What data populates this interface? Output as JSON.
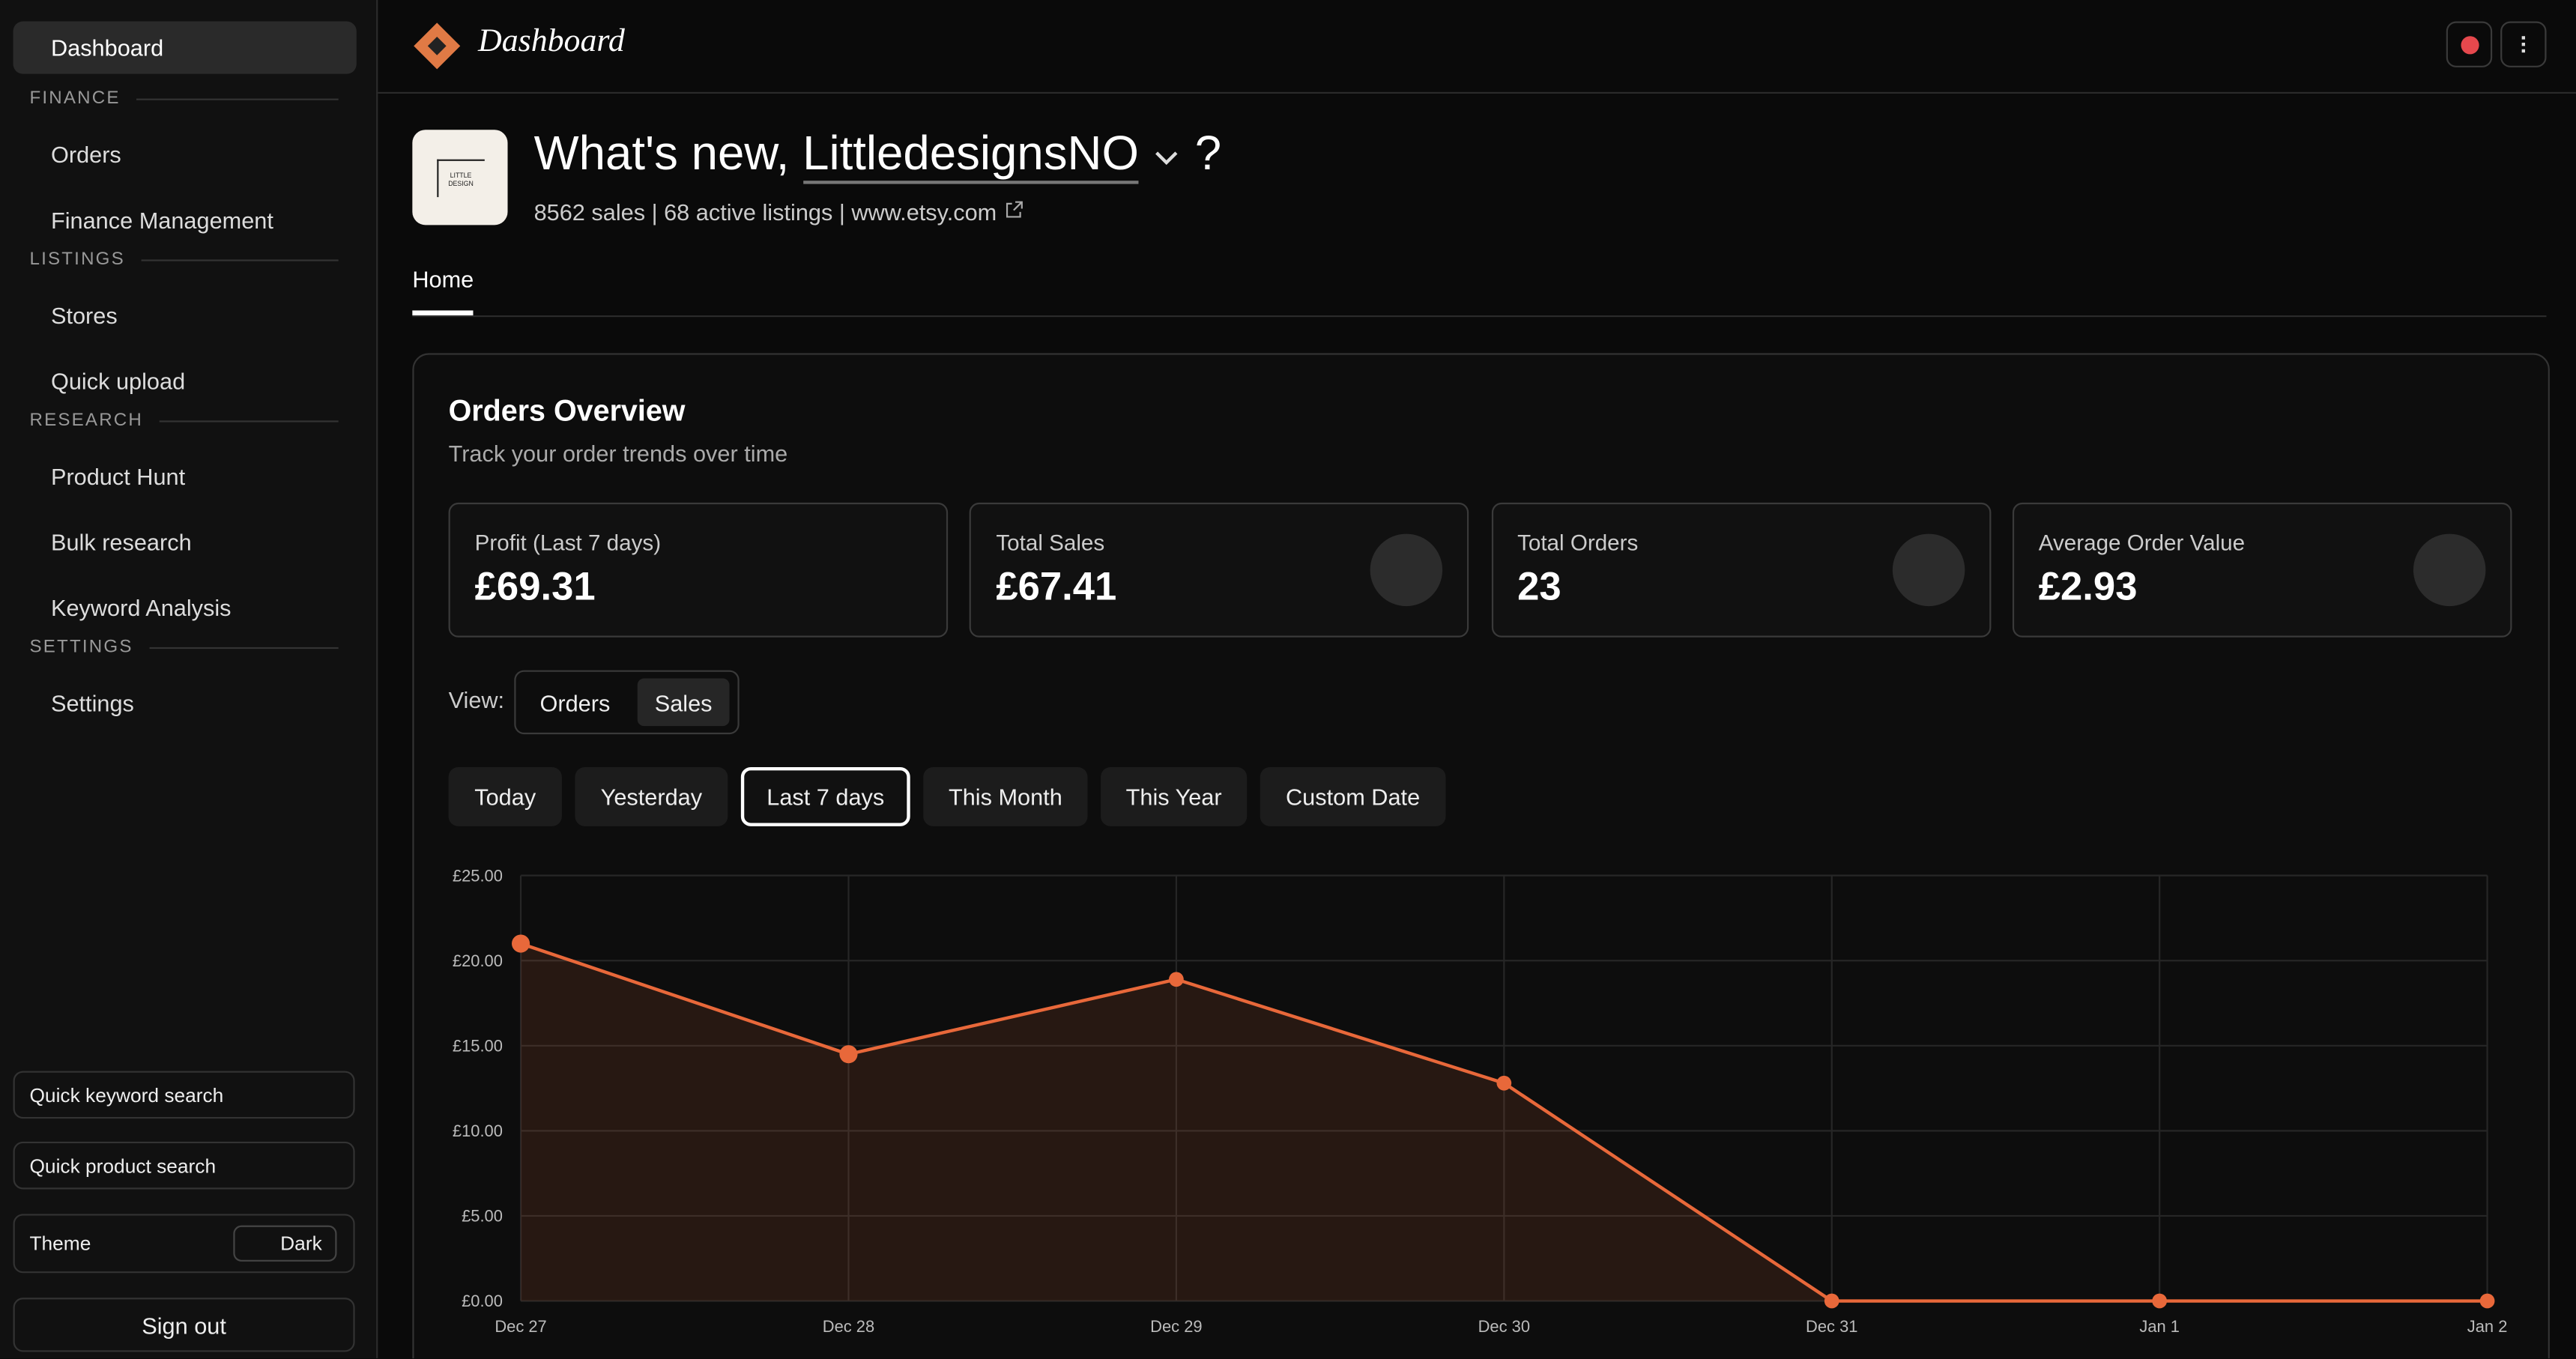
{
  "sidebar": {
    "active": "Dashboard",
    "sections": [
      {
        "heading": "FINANCE",
        "items": [
          "Orders",
          "Finance Management"
        ]
      },
      {
        "heading": "LISTINGS",
        "items": [
          "Stores",
          "Quick upload"
        ]
      },
      {
        "heading": "RESEARCH",
        "items": [
          "Product Hunt",
          "Bulk research",
          "Keyword Analysis"
        ]
      },
      {
        "heading": "SETTINGS",
        "items": [
          "Settings"
        ]
      }
    ],
    "search": [
      "Quick keyword search",
      "Quick product search"
    ],
    "theme_label": "Theme",
    "theme_value": "Dark",
    "sign_out": "Sign out"
  },
  "header": {
    "title": "Dashboard"
  },
  "shop": {
    "logo_text": "LITTLE DESIGN",
    "greeting": "What's new,",
    "name": "LittledesignsNO",
    "help": "?",
    "stats": "8562 sales | 68 active listings | www.etsy.com",
    "tab": "Home"
  },
  "overview": {
    "title": "Orders Overview",
    "subtitle": "Track your order trends over time",
    "cards": [
      {
        "label": "Profit (Last 7 days)",
        "value": "£69.31"
      },
      {
        "label": "Total Sales",
        "value": "£67.41"
      },
      {
        "label": "Total Orders",
        "value": "23"
      },
      {
        "label": "Average Order Value",
        "value": "£2.93"
      }
    ],
    "view_label": "View:",
    "view_options": [
      "Orders",
      "Sales"
    ],
    "ranges": [
      "Today",
      "Yesterday",
      "Last 7 days",
      "This Month",
      "This Year",
      "Custom Date"
    ]
  },
  "chart_data": {
    "type": "area",
    "categories": [
      "Dec 27",
      "Dec 28",
      "Dec 29",
      "Dec 30",
      "Dec 31",
      "Jan 1",
      "Jan 2"
    ],
    "values": [
      21,
      14.5,
      18.9,
      12.8,
      0,
      0,
      0
    ],
    "color": "#e8683a",
    "ylim": [
      0,
      25
    ],
    "yticks": [
      {
        "value": 0,
        "label": "£0.00"
      },
      {
        "value": 5,
        "label": "£5.00"
      },
      {
        "value": 10,
        "label": "£10.00"
      },
      {
        "value": 15,
        "label": "£15.00"
      },
      {
        "value": 20,
        "label": "£20.00"
      },
      {
        "value": 25,
        "label": "£25.00"
      }
    ],
    "grid": true
  }
}
